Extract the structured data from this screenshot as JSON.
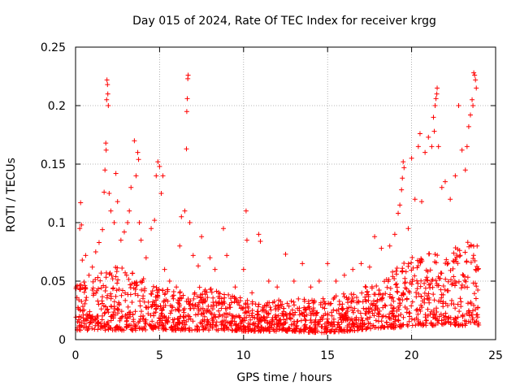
{
  "chart_data": {
    "type": "scatter",
    "title": "Day 015 of 2024, Rate Of TEC Index for receiver krgg",
    "xlabel": "GPS time / hours",
    "ylabel": "ROTI / TECUs",
    "xlim": [
      0,
      25
    ],
    "ylim": [
      0,
      0.25
    ],
    "xticks": [
      "0",
      "5",
      "10",
      "15",
      "20",
      "25"
    ],
    "yticks": [
      "0",
      "0.05",
      "0.1",
      "0.15",
      "0.2",
      "0.25"
    ],
    "grid": true,
    "marker": "+",
    "color": "#ff0000",
    "series": [
      {
        "name": "",
        "points": [
          [
            0.1,
            0.01
          ],
          [
            0.1,
            0.046
          ],
          [
            0.25,
            0.095
          ],
          [
            0.3,
            0.117
          ],
          [
            0.35,
            0.098
          ],
          [
            0.4,
            0.068
          ],
          [
            0.6,
            0.072
          ],
          [
            0.8,
            0.055
          ],
          [
            1.0,
            0.062
          ],
          [
            1.2,
            0.075
          ],
          [
            1.4,
            0.083
          ],
          [
            1.6,
            0.094
          ],
          [
            1.7,
            0.126
          ],
          [
            1.75,
            0.145
          ],
          [
            1.8,
            0.168
          ],
          [
            1.82,
            0.162
          ],
          [
            1.85,
            0.205
          ],
          [
            1.87,
            0.222
          ],
          [
            1.9,
            0.218
          ],
          [
            1.92,
            0.21
          ],
          [
            1.95,
            0.2
          ],
          [
            2.0,
            0.125
          ],
          [
            2.1,
            0.11
          ],
          [
            2.3,
            0.1
          ],
          [
            2.4,
            0.142
          ],
          [
            2.5,
            0.118
          ],
          [
            2.7,
            0.085
          ],
          [
            2.9,
            0.092
          ],
          [
            3.1,
            0.1
          ],
          [
            3.2,
            0.11
          ],
          [
            3.3,
            0.13
          ],
          [
            3.5,
            0.17
          ],
          [
            3.6,
            0.14
          ],
          [
            3.7,
            0.16
          ],
          [
            3.75,
            0.154
          ],
          [
            3.8,
            0.1
          ],
          [
            3.9,
            0.085
          ],
          [
            4.2,
            0.07
          ],
          [
            4.5,
            0.095
          ],
          [
            4.7,
            0.102
          ],
          [
            4.8,
            0.14
          ],
          [
            4.9,
            0.152
          ],
          [
            5.0,
            0.148
          ],
          [
            5.1,
            0.125
          ],
          [
            5.2,
            0.14
          ],
          [
            5.3,
            0.06
          ],
          [
            5.6,
            0.05
          ],
          [
            6.0,
            0.045
          ],
          [
            6.2,
            0.08
          ],
          [
            6.3,
            0.105
          ],
          [
            6.5,
            0.11
          ],
          [
            6.6,
            0.163
          ],
          [
            6.62,
            0.195
          ],
          [
            6.65,
            0.206
          ],
          [
            6.68,
            0.223
          ],
          [
            6.7,
            0.226
          ],
          [
            6.8,
            0.1
          ],
          [
            7.0,
            0.072
          ],
          [
            7.3,
            0.063
          ],
          [
            7.5,
            0.088
          ],
          [
            8.0,
            0.07
          ],
          [
            8.3,
            0.06
          ],
          [
            8.8,
            0.095
          ],
          [
            9.0,
            0.072
          ],
          [
            9.5,
            0.045
          ],
          [
            10.0,
            0.06
          ],
          [
            10.15,
            0.11
          ],
          [
            10.2,
            0.085
          ],
          [
            10.5,
            0.04
          ],
          [
            10.9,
            0.09
          ],
          [
            11.0,
            0.084
          ],
          [
            11.5,
            0.05
          ],
          [
            12.0,
            0.045
          ],
          [
            12.5,
            0.073
          ],
          [
            13.0,
            0.05
          ],
          [
            13.5,
            0.065
          ],
          [
            14.0,
            0.045
          ],
          [
            14.5,
            0.05
          ],
          [
            15.0,
            0.065
          ],
          [
            15.5,
            0.05
          ],
          [
            16.0,
            0.055
          ],
          [
            16.5,
            0.06
          ],
          [
            17.0,
            0.065
          ],
          [
            17.5,
            0.062
          ],
          [
            17.8,
            0.088
          ],
          [
            18.2,
            0.078
          ],
          [
            18.7,
            0.08
          ],
          [
            19.0,
            0.09
          ],
          [
            19.2,
            0.108
          ],
          [
            19.3,
            0.115
          ],
          [
            19.4,
            0.128
          ],
          [
            19.45,
            0.138
          ],
          [
            19.5,
            0.152
          ],
          [
            19.55,
            0.147
          ],
          [
            19.8,
            0.095
          ],
          [
            20.0,
            0.155
          ],
          [
            20.2,
            0.12
          ],
          [
            20.4,
            0.165
          ],
          [
            20.5,
            0.176
          ],
          [
            20.6,
            0.118
          ],
          [
            20.8,
            0.16
          ],
          [
            21.0,
            0.173
          ],
          [
            21.2,
            0.165
          ],
          [
            21.3,
            0.19
          ],
          [
            21.35,
            0.178
          ],
          [
            21.4,
            0.2
          ],
          [
            21.45,
            0.206
          ],
          [
            21.5,
            0.21
          ],
          [
            21.52,
            0.215
          ],
          [
            21.6,
            0.165
          ],
          [
            21.8,
            0.13
          ],
          [
            22.0,
            0.135
          ],
          [
            22.3,
            0.12
          ],
          [
            22.6,
            0.14
          ],
          [
            22.8,
            0.2
          ],
          [
            23.0,
            0.162
          ],
          [
            23.2,
            0.145
          ],
          [
            23.3,
            0.165
          ],
          [
            23.4,
            0.182
          ],
          [
            23.5,
            0.192
          ],
          [
            23.6,
            0.205
          ],
          [
            23.65,
            0.2
          ],
          [
            23.7,
            0.228
          ],
          [
            23.75,
            0.226
          ],
          [
            23.8,
            0.222
          ],
          [
            23.85,
            0.215
          ],
          [
            23.9,
            0.08
          ],
          [
            23.95,
            0.06
          ]
        ],
        "baseline_envelope": [
          [
            0,
            0.008,
            0.05
          ],
          [
            1,
            0.008,
            0.05
          ],
          [
            2,
            0.008,
            0.065
          ],
          [
            3,
            0.008,
            0.06
          ],
          [
            4,
            0.008,
            0.055
          ],
          [
            5,
            0.008,
            0.05
          ],
          [
            6,
            0.008,
            0.04
          ],
          [
            7,
            0.008,
            0.045
          ],
          [
            8,
            0.008,
            0.045
          ],
          [
            9,
            0.008,
            0.04
          ],
          [
            10,
            0.007,
            0.035
          ],
          [
            11,
            0.007,
            0.03
          ],
          [
            12,
            0.007,
            0.035
          ],
          [
            13,
            0.007,
            0.035
          ],
          [
            14,
            0.006,
            0.035
          ],
          [
            15,
            0.006,
            0.035
          ],
          [
            16,
            0.007,
            0.04
          ],
          [
            17,
            0.008,
            0.045
          ],
          [
            18,
            0.01,
            0.05
          ],
          [
            19,
            0.01,
            0.06
          ],
          [
            20,
            0.012,
            0.07
          ],
          [
            21,
            0.012,
            0.075
          ],
          [
            22,
            0.012,
            0.07
          ],
          [
            23,
            0.012,
            0.085
          ],
          [
            24,
            0.012,
            0.08
          ]
        ]
      }
    ]
  }
}
